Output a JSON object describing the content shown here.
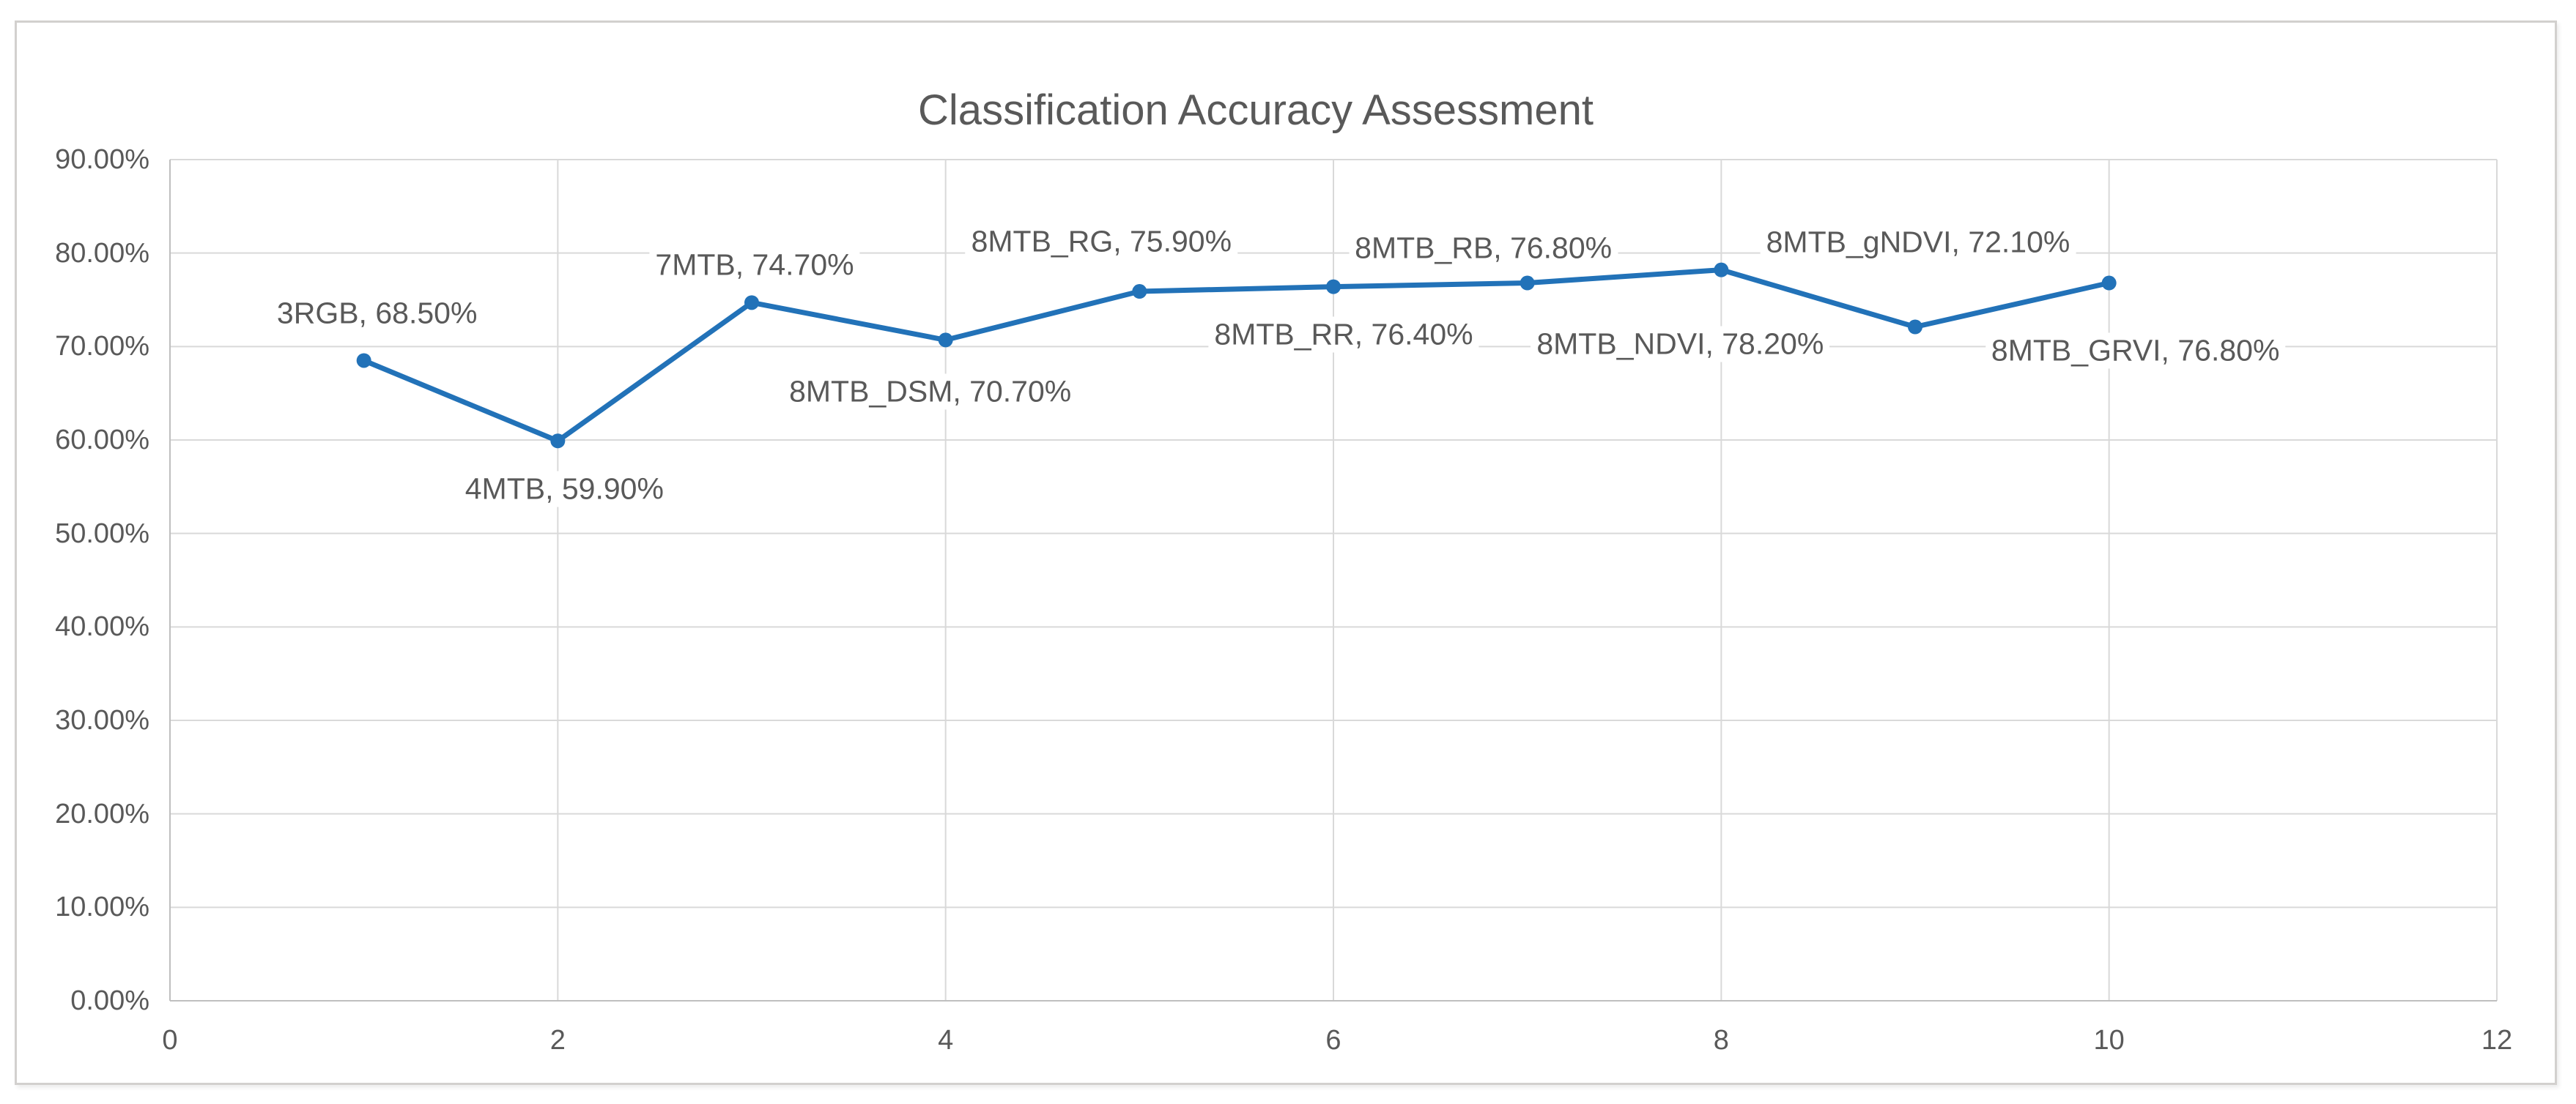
{
  "chart_data": {
    "type": "line",
    "title": "Classification Accuracy Assessment",
    "xlabel": "",
    "ylabel": "",
    "xlim": [
      0,
      12
    ],
    "ylim": [
      0,
      90
    ],
    "grid": true,
    "legend_position": "none",
    "x_tick_values": [
      0,
      2,
      4,
      6,
      8,
      10,
      12
    ],
    "x_tick_labels": [
      "0",
      "2",
      "4",
      "6",
      "8",
      "10",
      "12"
    ],
    "y_tick_values": [
      0,
      10,
      20,
      30,
      40,
      50,
      60,
      70,
      80,
      90
    ],
    "y_tick_labels": [
      "0.00%",
      "10.00%",
      "20.00%",
      "30.00%",
      "40.00%",
      "50.00%",
      "60.00%",
      "70.00%",
      "80.00%",
      "90.00%"
    ],
    "colors": {
      "series": "#2272B8",
      "text": "#595959",
      "gridline": "#D9D9D9",
      "axis": "#BFBFBF",
      "background": "#FFFFFF"
    },
    "series": [
      {
        "name": "Classification Accuracy",
        "color": "#2272B8",
        "x": [
          1,
          2,
          3,
          4,
          5,
          6,
          7,
          8,
          9,
          10
        ],
        "y": [
          68.5,
          59.9,
          74.7,
          70.7,
          75.9,
          76.4,
          76.8,
          78.2,
          72.1,
          76.8
        ],
        "points": [
          {
            "category": "3RGB",
            "value": 68.5,
            "label": "3RGB, 68.50%",
            "label_offset": [
              18,
              -64
            ]
          },
          {
            "category": "4MTB",
            "value": 59.9,
            "label": "4MTB, 59.90%",
            "label_offset": [
              9,
              66
            ]
          },
          {
            "category": "7MTB",
            "value": 74.7,
            "label": "7MTB, 74.70%",
            "label_offset": [
              4,
              -51
            ]
          },
          {
            "category": "8MTB_DSM",
            "value": 70.7,
            "label": "8MTB_DSM, 70.70%",
            "label_offset": [
              -21,
              71
            ]
          },
          {
            "category": "8MTB_RG",
            "value": 75.9,
            "label": "8MTB_RG, 75.90%",
            "label_offset": [
              -52,
              -68
            ]
          },
          {
            "category": "8MTB_RR",
            "value": 76.4,
            "label": "8MTB_RR, 76.40%",
            "label_offset": [
              14,
              65
            ]
          },
          {
            "category": "8MTB_RB",
            "value": 76.8,
            "label": "8MTB_RB, 76.80%",
            "label_offset": [
              -60,
              -48
            ]
          },
          {
            "category": "8MTB_NDVI",
            "value": 78.2,
            "label": "8MTB_NDVI, 78.20%",
            "label_offset": [
              -56,
              101
            ]
          },
          {
            "category": "8MTB_gNDVI",
            "value": 72.1,
            "label": "8MTB_gNDVI, 72.10%",
            "label_offset": [
              4,
              -116
            ]
          },
          {
            "category": "8MTB_GRVI",
            "value": 76.8,
            "label": "8MTB_GRVI, 76.80%",
            "label_offset": [
              36,
              92
            ]
          }
        ]
      }
    ]
  }
}
